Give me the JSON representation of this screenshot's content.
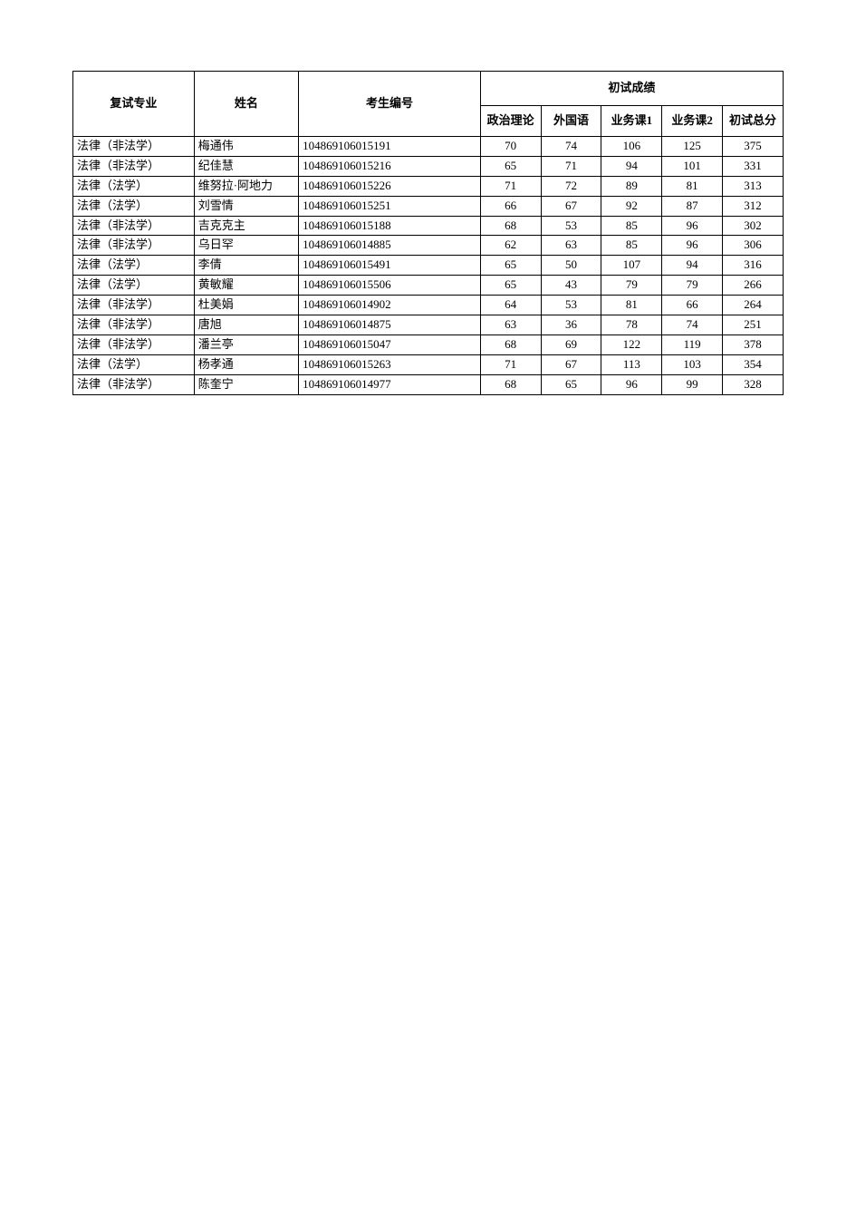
{
  "table": {
    "headers": {
      "major": "复试专业",
      "name": "姓名",
      "exam_id": "考生编号",
      "score_group": "初试成绩",
      "politics": "政治理论",
      "foreign_lang": "外国语",
      "subject1": "业务课1",
      "subject2": "业务课2",
      "total": "初试总分"
    },
    "rows": [
      {
        "major": "法律（非法学）",
        "name": "梅通伟",
        "exam_id": "104869106015191",
        "politics": "70",
        "foreign_lang": "74",
        "subject1": "106",
        "subject2": "125",
        "total": "375"
      },
      {
        "major": "法律（非法学）",
        "name": "纪佳慧",
        "exam_id": "104869106015216",
        "politics": "65",
        "foreign_lang": "71",
        "subject1": "94",
        "subject2": "101",
        "total": "331"
      },
      {
        "major": "法律（法学）",
        "name": "维努拉·阿地力",
        "exam_id": "104869106015226",
        "politics": "71",
        "foreign_lang": "72",
        "subject1": "89",
        "subject2": "81",
        "total": "313"
      },
      {
        "major": "法律（法学）",
        "name": "刘雪情",
        "exam_id": "104869106015251",
        "politics": "66",
        "foreign_lang": "67",
        "subject1": "92",
        "subject2": "87",
        "total": "312"
      },
      {
        "major": "法律（非法学）",
        "name": "吉克克主",
        "exam_id": "104869106015188",
        "politics": "68",
        "foreign_lang": "53",
        "subject1": "85",
        "subject2": "96",
        "total": "302"
      },
      {
        "major": "法律（非法学）",
        "name": "乌日罕",
        "exam_id": "104869106014885",
        "politics": "62",
        "foreign_lang": "63",
        "subject1": "85",
        "subject2": "96",
        "total": "306"
      },
      {
        "major": "法律（法学）",
        "name": "李倩",
        "exam_id": "104869106015491",
        "politics": "65",
        "foreign_lang": "50",
        "subject1": "107",
        "subject2": "94",
        "total": "316"
      },
      {
        "major": "法律（法学）",
        "name": "黄敏耀",
        "exam_id": "104869106015506",
        "politics": "65",
        "foreign_lang": "43",
        "subject1": "79",
        "subject2": "79",
        "total": "266"
      },
      {
        "major": "法律（非法学）",
        "name": "杜美娟",
        "exam_id": "104869106014902",
        "politics": "64",
        "foreign_lang": "53",
        "subject1": "81",
        "subject2": "66",
        "total": "264"
      },
      {
        "major": "法律（非法学）",
        "name": "唐旭",
        "exam_id": "104869106014875",
        "politics": "63",
        "foreign_lang": "36",
        "subject1": "78",
        "subject2": "74",
        "total": "251"
      },
      {
        "major": "法律（非法学）",
        "name": "潘兰亭",
        "exam_id": "104869106015047",
        "politics": "68",
        "foreign_lang": "69",
        "subject1": "122",
        "subject2": "119",
        "total": "378"
      },
      {
        "major": "法律（法学）",
        "name": "杨孝通",
        "exam_id": "104869106015263",
        "politics": "71",
        "foreign_lang": "67",
        "subject1": "113",
        "subject2": "103",
        "total": "354"
      },
      {
        "major": "法律（非法学）",
        "name": "陈奎宁",
        "exam_id": "104869106014977",
        "politics": "68",
        "foreign_lang": "65",
        "subject1": "96",
        "subject2": "99",
        "total": "328"
      }
    ]
  }
}
